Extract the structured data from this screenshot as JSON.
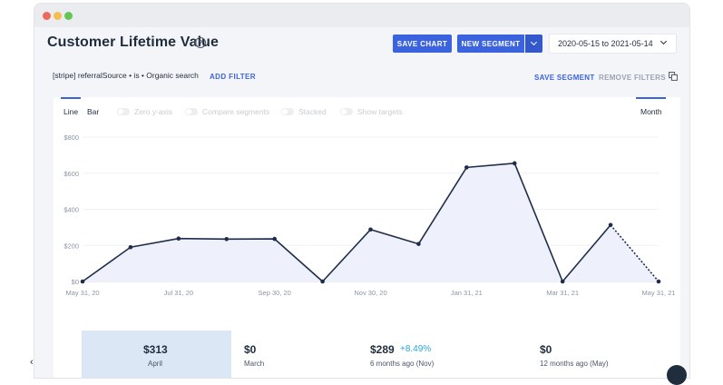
{
  "window": {
    "traffic_lights": [
      "close",
      "minimize",
      "maximize"
    ]
  },
  "header": {
    "title": "Customer Lifetime Value",
    "help_icon": "question-circle-icon",
    "save_chart": "SAVE CHART",
    "new_segment": "NEW SEGMENT",
    "date_range": "2020-05-15 to 2021-05-14"
  },
  "filters": {
    "chip": "[stripe] referralSource • is • Organic search",
    "add_filter": "ADD FILTER",
    "save_segment": "SAVE SEGMENT",
    "remove_filters": "REMOVE FILTERS"
  },
  "controls": {
    "tab_line": "Line",
    "tab_bar": "Bar",
    "toggle_zero": "Zero y-axis",
    "toggle_compare": "Compare segments",
    "toggle_stacked": "Stacked",
    "toggle_targets": "Show targets",
    "interval": "Month"
  },
  "colors": {
    "accent": "#3b63e0",
    "line": "#1f2d4a",
    "area": "#eef1fb",
    "positive": "#2aa6d9"
  },
  "chart_data": {
    "type": "line",
    "x": [
      "May 31, 20",
      "Jun 30, 20",
      "Jul 31, 20",
      "Aug 31, 20",
      "Sep 30, 20",
      "Oct 31, 20",
      "Nov 30, 20",
      "Dec 31, 20",
      "Jan 31, 21",
      "Feb 28, 21",
      "Mar 31, 21",
      "Apr 30, 21",
      "May 31, 21"
    ],
    "series": [
      {
        "values": [
          0,
          190,
          238,
          235,
          236,
          0,
          288,
          208,
          632,
          655,
          0,
          313,
          0
        ]
      }
    ],
    "projected_from_index": 11,
    "xticks": [
      "May 31, 20",
      "Jul 31, 20",
      "Sep 30, 20",
      "Nov 30, 20",
      "Jan 31, 21",
      "Mar 31, 21",
      "May 31, 21"
    ],
    "yticks": [
      "$0",
      "$200",
      "$400",
      "$600",
      "$800"
    ],
    "ylim": [
      0,
      800
    ],
    "grid": true
  },
  "stats": [
    {
      "value": "$313",
      "label": "April"
    },
    {
      "value": "$0",
      "label": "March"
    },
    {
      "value": "$289",
      "change": "+8.49%",
      "label": "6 months ago (Nov)"
    },
    {
      "value": "$0",
      "label": "12 months ago (May)"
    }
  ],
  "nav": {
    "prev_icon": "chevron-left-icon"
  }
}
